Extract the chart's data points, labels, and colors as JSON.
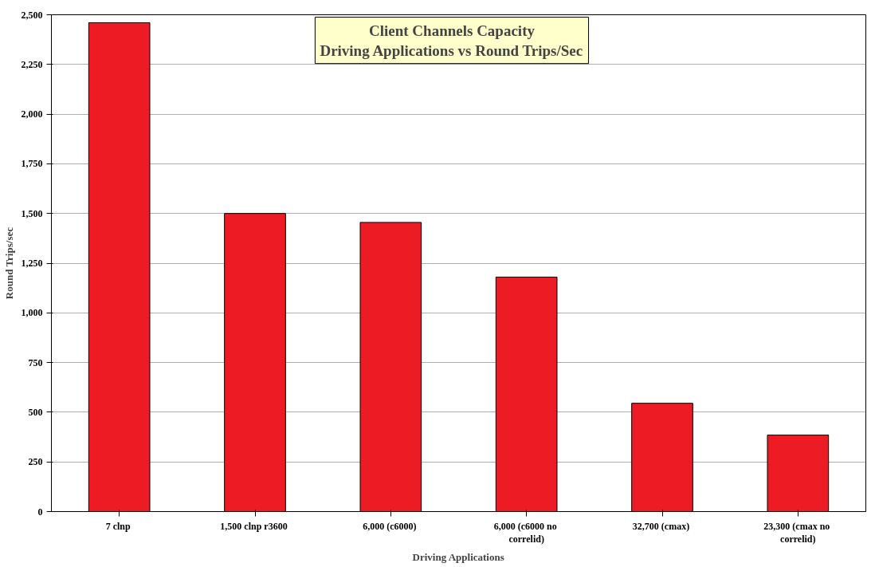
{
  "chart_data": {
    "type": "bar",
    "title": "Client Channels Capacity\nDriving Applications vs Round Trips/Sec",
    "xlabel": "Driving Applications",
    "ylabel": "Round Trips/sec",
    "categories": [
      "7  clnp",
      "1,500  clnp r3600",
      "6,000  (c6000)",
      "6,000  (c6000 no\ncorrelid)",
      "32,700  (cmax)",
      "23,300  (cmax no\ncorrelid)"
    ],
    "values": [
      2460,
      1500,
      1455,
      1180,
      545,
      385
    ],
    "color": "#ed1c24",
    "ylim": [
      0,
      2500
    ],
    "yticks": [
      0,
      {
        "value": 250,
        "label": "250"
      },
      {
        "value": 500,
        "label": "500"
      },
      {
        "value": 750,
        "label": "750"
      },
      {
        "value": 1000,
        "label": "1,000"
      },
      {
        "value": 1250,
        "label": "1,250"
      },
      {
        "value": 1500,
        "label": "1,500"
      },
      {
        "value": 1750,
        "label": "1,750"
      },
      {
        "value": 2000,
        "label": "2,000"
      },
      {
        "value": 2250,
        "label": "2,250"
      },
      {
        "value": 2500,
        "label": "2,500"
      }
    ],
    "grid": "y"
  }
}
